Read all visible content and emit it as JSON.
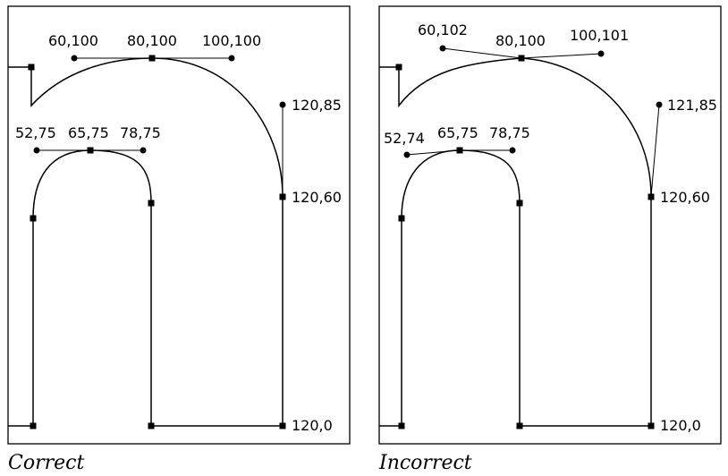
{
  "panels": [
    {
      "caption": "Correct",
      "labels": {
        "h60": "60,100",
        "a80": "80,100",
        "h100": "100,100",
        "h120_85": "120,85",
        "a120_60": "120,60",
        "a120_0": "120,0",
        "h52": "52,75",
        "a65": "65,75",
        "h78": "78,75"
      }
    },
    {
      "caption": "Incorrect",
      "labels": {
        "h60": "60,102",
        "a80": "80,100",
        "h100": "100,101",
        "h120_85": "121,85",
        "a120_60": "120,60",
        "a120_0": "120,0",
        "h52": "52,74",
        "a65": "65,75",
        "h78": "78,75"
      }
    }
  ]
}
